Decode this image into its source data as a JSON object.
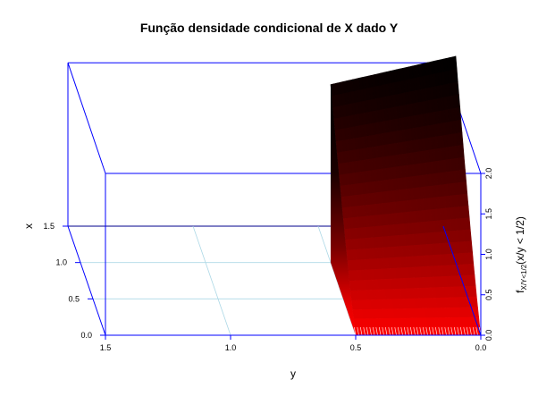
{
  "chart_data": {
    "type": "surface3d",
    "title": "Função densidade condicional de X dado Y",
    "xlabel": "y",
    "ylabel": "x",
    "zlabel": "fₓ/ᵧ<1/2(x/y < 1/2)",
    "zlabel_parts": {
      "f": "f",
      "sub": "X/Y<1/2",
      "rest": "(x/y < 1/2)"
    },
    "y_axis": {
      "ticks": [
        1.5,
        1.0,
        0.5,
        0.0
      ],
      "tick_labels": [
        "1.5",
        "1.0",
        "0.5",
        "0.0"
      ],
      "range": [
        0,
        1.5
      ]
    },
    "x_axis": {
      "ticks": [
        0.0,
        0.5,
        1.0,
        1.5
      ],
      "tick_labels": [
        "0.0",
        "0.5",
        "1.0",
        "1.5"
      ],
      "range": [
        0,
        1.5
      ]
    },
    "z_axis": {
      "ticks": [
        0.0,
        0.5,
        1.0,
        1.5,
        2.0
      ],
      "tick_labels": [
        "0.0",
        "0.5",
        "1.0",
        "1.5",
        "2.0"
      ],
      "range": [
        0,
        2
      ]
    },
    "support": {
      "y": [
        0,
        0.5
      ],
      "x": [
        0,
        1
      ]
    },
    "surface": {
      "description": "density surface over 0<y<1/2, 0<x<1, rising from ~0 at x=0 to ~2.6 at x=1",
      "height_at_x0": 0.0,
      "height_at_x1_y0": 2.55,
      "height_at_x1_y05": 2.2
    },
    "colors": {
      "box": "#0000ff",
      "grid": "#add8e6",
      "surface_low": "#ff0000",
      "surface_high": "#000000"
    },
    "grid": true
  }
}
